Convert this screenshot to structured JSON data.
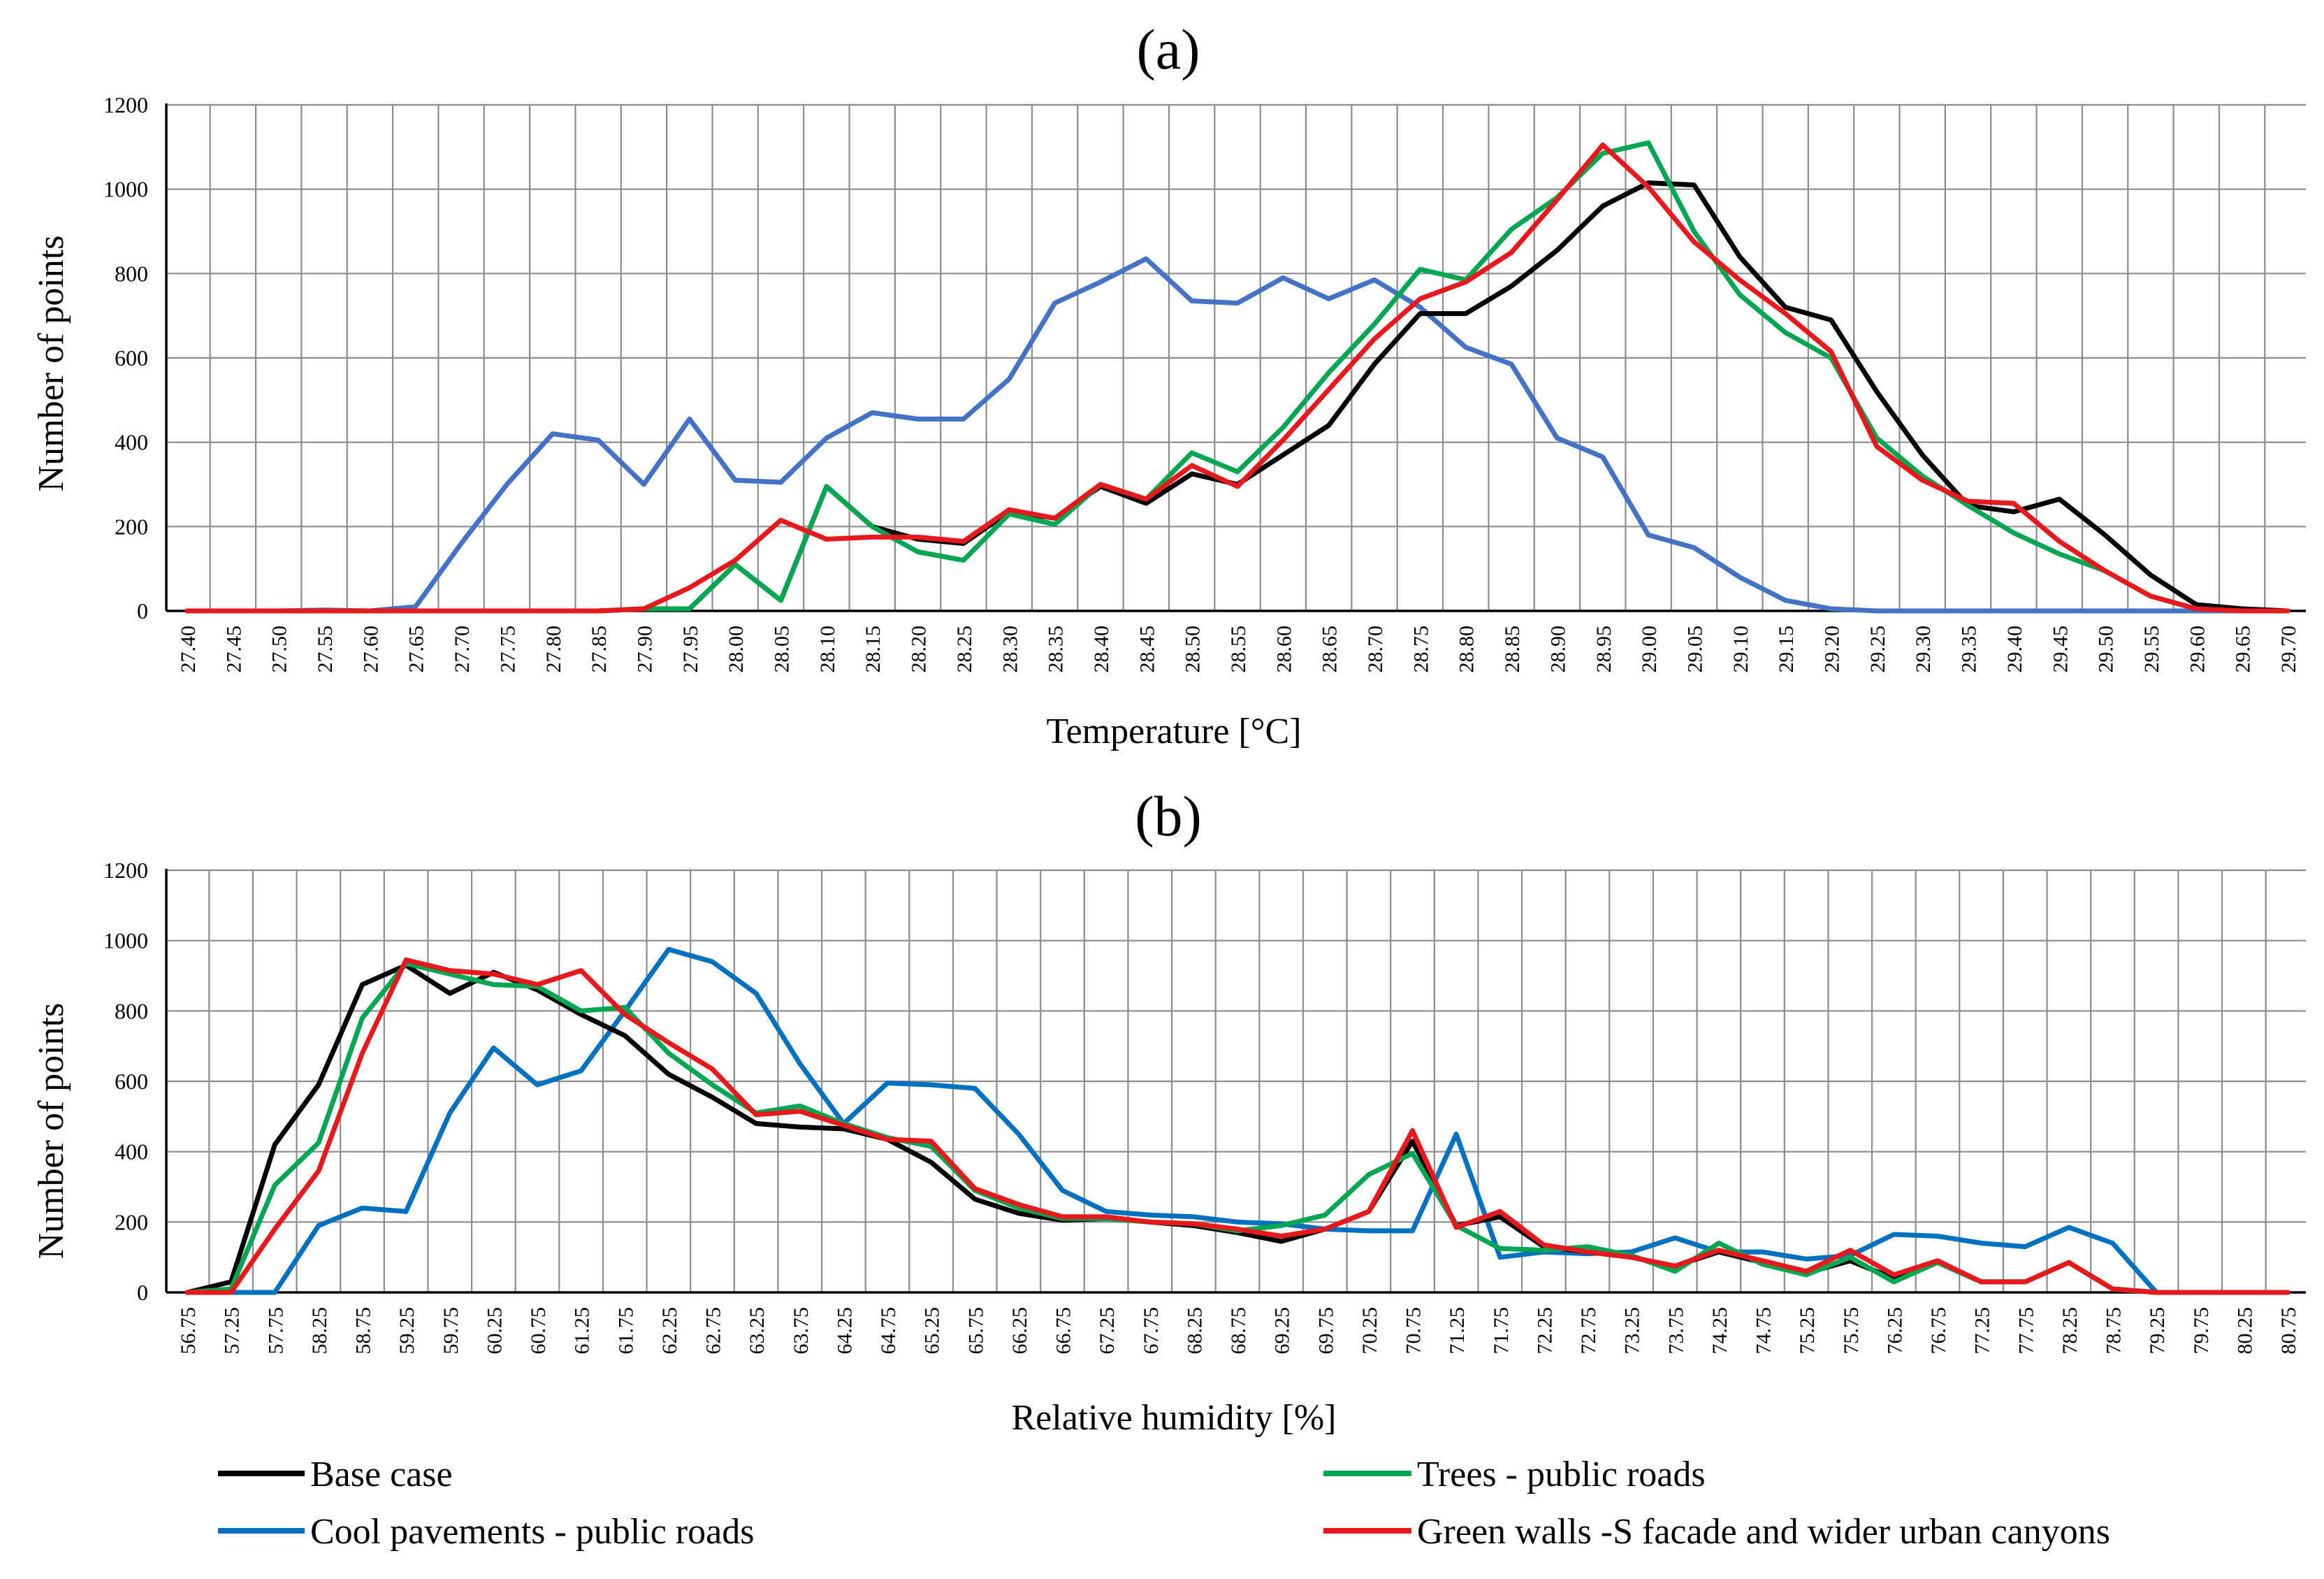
{
  "legend": [
    {
      "name": "Base case",
      "color": "#000000"
    },
    {
      "name": "Trees - public roads",
      "color": "#00a651"
    },
    {
      "name": "Cool pavements - public roads",
      "color": "#0070c0"
    },
    {
      "name": "Green walls -S facade and wider urban canyons",
      "color": "#e8191c"
    }
  ],
  "chart_data": [
    {
      "type": "line",
      "title": "(a)",
      "xlabel": "Temperature [°C]",
      "ylabel": "Number of points",
      "ylim": [
        0,
        1200
      ],
      "yticks": [
        "0",
        "200",
        "400",
        "600",
        "800",
        "1000",
        "1200"
      ],
      "grid": true,
      "categories": [
        "27.40",
        "27.45",
        "27.50",
        "27.55",
        "27.60",
        "27.65",
        "27.70",
        "27.75",
        "27.80",
        "27.85",
        "27.90",
        "27.95",
        "28.00",
        "28.05",
        "28.10",
        "28.15",
        "28.20",
        "28.25",
        "28.30",
        "28.35",
        "28.40",
        "28.45",
        "28.50",
        "28.55",
        "28.60",
        "28.65",
        "28.70",
        "28.75",
        "28.80",
        "28.85",
        "28.90",
        "28.95",
        "29.00",
        "29.05",
        "29.10",
        "29.15",
        "29.20",
        "29.25",
        "29.30",
        "29.35",
        "29.40",
        "29.45",
        "29.50",
        "29.55",
        "29.60",
        "29.65",
        "29.70"
      ],
      "series": [
        {
          "name": "Cool pavements - public roads",
          "color": "#4472c4",
          "values": [
            0,
            0,
            0,
            2,
            0,
            10,
            160,
            300,
            420,
            405,
            300,
            455,
            310,
            305,
            410,
            470,
            455,
            455,
            550,
            730,
            780,
            835,
            735,
            730,
            790,
            740,
            785,
            720,
            625,
            585,
            410,
            365,
            180,
            150,
            80,
            25,
            5,
            0,
            0,
            0,
            0,
            0,
            0,
            0,
            0,
            0,
            0
          ]
        },
        {
          "name": "Base case",
          "color": "#000000",
          "values": [
            0,
            0,
            0,
            0,
            0,
            0,
            0,
            0,
            0,
            0,
            5,
            5,
            110,
            25,
            295,
            200,
            170,
            160,
            235,
            220,
            295,
            255,
            325,
            300,
            370,
            440,
            585,
            705,
            705,
            770,
            855,
            960,
            1015,
            1010,
            840,
            720,
            690,
            520,
            370,
            250,
            235,
            265,
            180,
            85,
            15,
            5,
            0
          ]
        },
        {
          "name": "Trees - public roads",
          "color": "#00a651",
          "values": [
            0,
            0,
            0,
            0,
            0,
            0,
            0,
            0,
            0,
            0,
            5,
            5,
            110,
            25,
            295,
            200,
            140,
            120,
            230,
            205,
            300,
            265,
            375,
            330,
            435,
            565,
            680,
            810,
            785,
            905,
            980,
            1085,
            1110,
            900,
            750,
            660,
            600,
            410,
            320,
            250,
            185,
            135,
            95,
            35,
            5,
            0,
            0
          ]
        },
        {
          "name": "Green walls -S facade and wider urban canyons",
          "color": "#e8191c",
          "values": [
            0,
            0,
            0,
            0,
            0,
            0,
            0,
            0,
            0,
            0,
            5,
            55,
            120,
            215,
            170,
            175,
            175,
            165,
            240,
            220,
            300,
            265,
            345,
            295,
            405,
            525,
            645,
            740,
            780,
            850,
            975,
            1105,
            1005,
            875,
            785,
            705,
            615,
            390,
            310,
            260,
            255,
            165,
            95,
            35,
            5,
            0,
            0
          ]
        }
      ]
    },
    {
      "type": "line",
      "title": "(b)",
      "xlabel": "Relative humidity [%]",
      "ylabel": "Number of points",
      "ylim": [
        0,
        1200
      ],
      "yticks": [
        "0",
        "200",
        "400",
        "600",
        "800",
        "1000",
        "1200"
      ],
      "grid": true,
      "categories": [
        "56.75",
        "57.25",
        "57.75",
        "58.25",
        "58.75",
        "59.25",
        "59.75",
        "60.25",
        "60.75",
        "61.25",
        "61.75",
        "62.25",
        "62.75",
        "63.25",
        "63.75",
        "64.25",
        "64.75",
        "65.25",
        "65.75",
        "66.25",
        "66.75",
        "67.25",
        "67.75",
        "68.25",
        "68.75",
        "69.25",
        "69.75",
        "70.25",
        "70.75",
        "71.25",
        "71.75",
        "72.25",
        "72.75",
        "73.25",
        "73.75",
        "74.25",
        "74.75",
        "75.25",
        "75.75",
        "76.25",
        "76.75",
        "77.25",
        "77.75",
        "78.25",
        "78.75",
        "79.25",
        "79.75",
        "80.25",
        "80.75"
      ],
      "series": [
        {
          "name": "Cool pavements - public roads",
          "color": "#0070c0",
          "values": [
            0,
            0,
            0,
            190,
            240,
            230,
            510,
            695,
            590,
            630,
            800,
            975,
            940,
            850,
            650,
            480,
            595,
            590,
            580,
            450,
            290,
            230,
            220,
            215,
            200,
            195,
            180,
            175,
            175,
            450,
            100,
            115,
            110,
            115,
            155,
            115,
            115,
            95,
            105,
            165,
            160,
            140,
            130,
            185,
            140,
            0,
            0,
            0,
            0
          ]
        },
        {
          "name": "Base case",
          "color": "#000000",
          "values": [
            0,
            30,
            420,
            590,
            875,
            930,
            850,
            910,
            860,
            790,
            730,
            620,
            555,
            480,
            470,
            465,
            435,
            370,
            265,
            225,
            205,
            210,
            200,
            190,
            170,
            145,
            180,
            230,
            430,
            190,
            215,
            130,
            115,
            100,
            75,
            115,
            85,
            55,
            90,
            40,
            85,
            30,
            30,
            85,
            10,
            0,
            0,
            0,
            0
          ]
        },
        {
          "name": "Trees - public roads",
          "color": "#00a651",
          "values": [
            0,
            10,
            305,
            425,
            780,
            935,
            905,
            875,
            870,
            800,
            810,
            680,
            590,
            510,
            530,
            480,
            440,
            415,
            290,
            240,
            210,
            210,
            200,
            195,
            175,
            190,
            220,
            335,
            395,
            190,
            125,
            120,
            130,
            105,
            60,
            140,
            80,
            50,
            100,
            30,
            85,
            30,
            30,
            85,
            10,
            0,
            0,
            0,
            0
          ]
        },
        {
          "name": "Green walls -S facade and wider urban canyons",
          "color": "#e8191c",
          "values": [
            0,
            0,
            180,
            345,
            680,
            945,
            915,
            905,
            875,
            915,
            790,
            710,
            635,
            505,
            515,
            475,
            435,
            430,
            295,
            250,
            215,
            215,
            200,
            195,
            180,
            160,
            180,
            230,
            460,
            185,
            230,
            135,
            115,
            100,
            75,
            120,
            90,
            60,
            120,
            50,
            90,
            30,
            30,
            85,
            10,
            0,
            0,
            0,
            0
          ]
        }
      ]
    }
  ]
}
